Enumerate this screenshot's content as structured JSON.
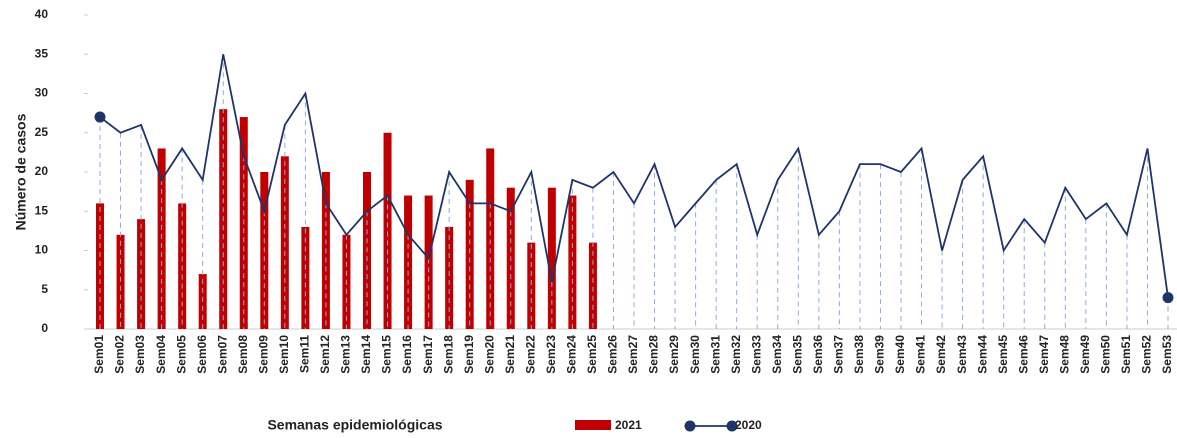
{
  "chart_data": {
    "type": "bar_line",
    "x_label": "Semanas epidemiológicas",
    "y_label": "Número de casos",
    "categories": [
      "Sem01",
      "Sem02",
      "Sem03",
      "Sem04",
      "Sem05",
      "Sem06",
      "Sem07",
      "Sem08",
      "Sem09",
      "Sem10",
      "Sem11",
      "Sem12",
      "Sem13",
      "Sem14",
      "Sem15",
      "Sem16",
      "Sem17",
      "Sem18",
      "Sem19",
      "Sem20",
      "Sem21",
      "Sem22",
      "Sem23",
      "Sem24",
      "Sem25",
      "Sem26",
      "Sem27",
      "Sem28",
      "Sem29",
      "Sem30",
      "Sem31",
      "Sem32",
      "Sem33",
      "Sem34",
      "Sem35",
      "Sem36",
      "Sem37",
      "Sem38",
      "Sem39",
      "Sem40",
      "Sem41",
      "Sem42",
      "Sem43",
      "Sem44",
      "Sem45",
      "Sem46",
      "Sem47",
      "Sem48",
      "Sem49",
      "Sem50",
      "Sem51",
      "Sem52",
      "Sem53"
    ],
    "series": [
      {
        "name": "2021",
        "type": "bar",
        "color": "#c00000",
        "values": [
          16,
          12,
          14,
          23,
          16,
          7,
          28,
          27,
          20,
          22,
          13,
          20,
          12,
          20,
          25,
          17,
          17,
          13,
          19,
          23,
          18,
          11,
          18,
          17,
          11,
          null,
          null,
          null,
          null,
          null,
          null,
          null,
          null,
          null,
          null,
          null,
          null,
          null,
          null,
          null,
          null,
          null,
          null,
          null,
          null,
          null,
          null,
          null,
          null,
          null,
          null,
          null,
          null
        ]
      },
      {
        "name": "2020",
        "type": "line",
        "color": "#1f3468",
        "values": [
          27,
          25,
          26,
          19,
          23,
          19,
          35,
          22,
          15,
          26,
          30,
          16,
          12,
          15,
          17,
          12,
          9,
          20,
          16,
          16,
          15,
          20,
          6,
          19,
          18,
          20,
          16,
          21,
          13,
          16,
          19,
          21,
          12,
          19,
          23,
          12,
          15,
          21,
          21,
          20,
          23,
          10,
          19,
          22,
          10,
          14,
          11,
          18,
          14,
          16,
          12,
          23,
          4
        ]
      }
    ],
    "ylim": [
      0,
      40
    ],
    "yticks": [
      0,
      5,
      10,
      15,
      20,
      25,
      30,
      35,
      40
    ]
  }
}
